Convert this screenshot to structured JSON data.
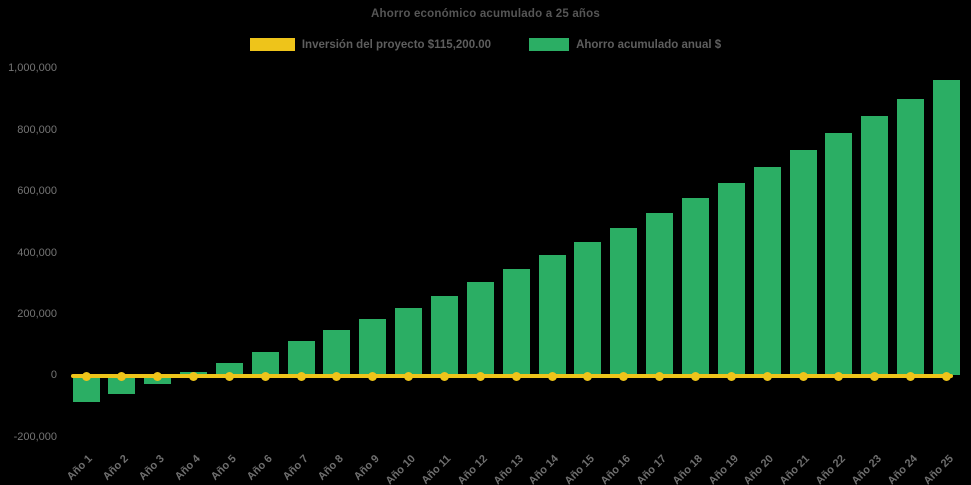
{
  "legend": {
    "investment_label": "Inversión del proyecto $115,200.00",
    "savings_label": "Ahorro acumulado anual $"
  },
  "colors": {
    "background": "#000000",
    "bar": "#2BAE64",
    "line": "#EEC41A",
    "title_text": "#565656",
    "tick_text": "#757575",
    "legend_text": "#5E5E5E"
  },
  "chart_data": {
    "type": "bar",
    "title": "Ahorro económico acumulado a 25 años",
    "xlabel": "",
    "ylabel": "",
    "ylim": [
      -200000,
      1000000
    ],
    "grid": false,
    "legend_position": "top",
    "categories": [
      "Año 1",
      "Año 2",
      "Año 3",
      "Año 4",
      "Año 5",
      "Año 6",
      "Año 7",
      "Año 8",
      "Año 9",
      "Año 10",
      "Año 11",
      "Año 12",
      "Año 13",
      "Año 14",
      "Año 15",
      "Año 16",
      "Año 17",
      "Año 18",
      "Año 19",
      "Año 20",
      "Año 21",
      "Año 22",
      "Año 23",
      "Año 24",
      "Año 25"
    ],
    "y_ticks": [
      {
        "value": 1000000,
        "label": "1,000,000"
      },
      {
        "value": 800000,
        "label": "800,000"
      },
      {
        "value": 600000,
        "label": "600,000"
      },
      {
        "value": 400000,
        "label": "400,000"
      },
      {
        "value": 200000,
        "label": "200,000"
      },
      {
        "value": 0,
        "label": "0"
      },
      {
        "value": -200000,
        "label": "-200,000"
      }
    ],
    "series": [
      {
        "name": "Inversión del proyecto $115,200.00",
        "type": "line",
        "color": "#EEC41A",
        "values": [
          0,
          0,
          0,
          0,
          0,
          0,
          0,
          0,
          0,
          0,
          0,
          0,
          0,
          0,
          0,
          0,
          0,
          0,
          0,
          0,
          0,
          0,
          0,
          0,
          0
        ]
      },
      {
        "name": "Ahorro acumulado anual $",
        "type": "bar",
        "color": "#2BAE64",
        "values": [
          -88000,
          -62000,
          -29000,
          10000,
          40000,
          76000,
          111000,
          149000,
          183000,
          219000,
          260000,
          303000,
          345000,
          392000,
          435000,
          479000,
          529000,
          576000,
          627000,
          679000,
          735000,
          789000,
          844000,
          901000,
          962000
        ]
      }
    ]
  }
}
